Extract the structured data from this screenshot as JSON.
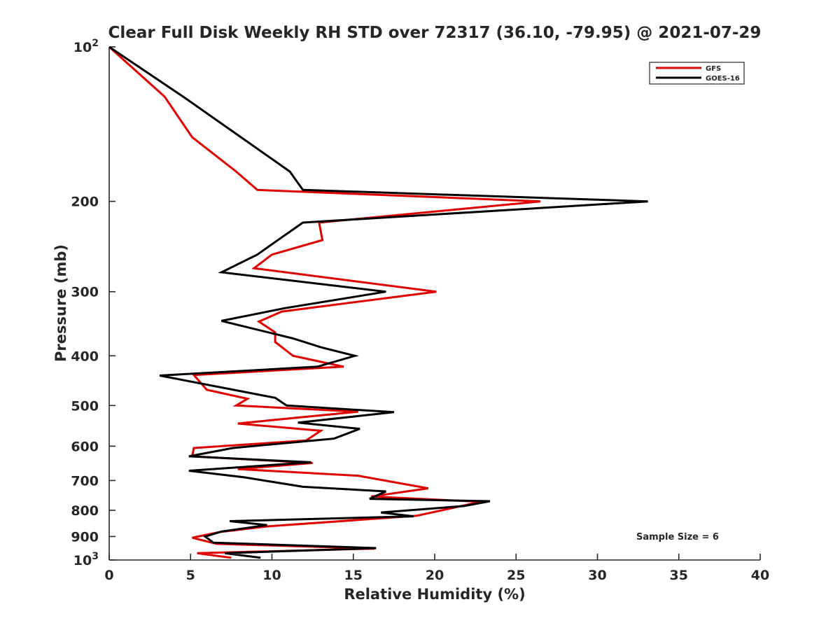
{
  "chart_data": {
    "type": "line",
    "title": "Clear Full Disk Weekly RH STD over 72317 (36.10, -79.95) @ 2021-07-29",
    "xlabel": "Relative Humidity (%)",
    "ylabel": "Pressure (mb)",
    "xlim": [
      0,
      40
    ],
    "ylim": [
      100,
      1000
    ],
    "yscale": "log",
    "y_reversed": true,
    "grid": false,
    "legend_position": "top-right",
    "x_ticks": [
      "0",
      "5",
      "10",
      "15",
      "20",
      "25",
      "30",
      "35",
      "40"
    ],
    "y_ticks": [
      {
        "value": 100,
        "base": "10",
        "exp": "2"
      },
      {
        "value": 200,
        "label": "200"
      },
      {
        "value": 300,
        "label": "300"
      },
      {
        "value": 400,
        "label": "400"
      },
      {
        "value": 500,
        "label": "500"
      },
      {
        "value": 600,
        "label": "600"
      },
      {
        "value": 700,
        "label": "700"
      },
      {
        "value": 800,
        "label": "800"
      },
      {
        "value": 900,
        "label": "900"
      },
      {
        "value": 1000,
        "base": "10",
        "exp": "3"
      }
    ],
    "annotation": "Sample Size = 6",
    "series": [
      {
        "name": "GFS",
        "color": "#e00000",
        "points": [
          [
            0.0,
            100
          ],
          [
            3.4,
            125
          ],
          [
            5.1,
            150
          ],
          [
            7.8,
            175
          ],
          [
            9.1,
            190
          ],
          [
            26.5,
            200
          ],
          [
            12.9,
            220
          ],
          [
            13.1,
            238
          ],
          [
            10.0,
            254
          ],
          [
            8.9,
            270
          ],
          [
            20.1,
            300
          ],
          [
            10.6,
            328
          ],
          [
            9.2,
            343
          ],
          [
            10.2,
            360
          ],
          [
            10.2,
            376
          ],
          [
            11.3,
            400
          ],
          [
            14.4,
            420
          ],
          [
            5.2,
            436
          ],
          [
            6.0,
            466
          ],
          [
            8.5,
            485
          ],
          [
            7.8,
            500
          ],
          [
            15.3,
            514
          ],
          [
            7.9,
            542
          ],
          [
            13.0,
            560
          ],
          [
            12.1,
            585
          ],
          [
            5.2,
            605
          ],
          [
            5.1,
            628
          ],
          [
            12.5,
            647
          ],
          [
            7.9,
            665
          ],
          [
            15.3,
            685
          ],
          [
            19.6,
            725
          ],
          [
            16.1,
            752
          ],
          [
            22.8,
            770
          ],
          [
            21.8,
            783
          ],
          [
            18.9,
            820
          ],
          [
            9.7,
            860
          ],
          [
            6.8,
            882
          ],
          [
            5.1,
            905
          ],
          [
            6.6,
            930
          ],
          [
            16.3,
            950
          ],
          [
            5.4,
            970
          ],
          [
            7.5,
            990
          ]
        ]
      },
      {
        "name": "GOES-16",
        "color": "#000000",
        "points": [
          [
            0.0,
            100
          ],
          [
            4.7,
            126
          ],
          [
            11.1,
            175
          ],
          [
            11.9,
            190
          ],
          [
            33.1,
            200
          ],
          [
            11.9,
            220
          ],
          [
            10.2,
            240
          ],
          [
            9.1,
            254
          ],
          [
            6.9,
            275
          ],
          [
            17.0,
            300
          ],
          [
            10.8,
            323
          ],
          [
            6.9,
            342
          ],
          [
            11.3,
            370
          ],
          [
            13.0,
            385
          ],
          [
            15.1,
            400
          ],
          [
            12.8,
            420
          ],
          [
            3.1,
            437
          ],
          [
            10.2,
            483
          ],
          [
            10.9,
            500
          ],
          [
            17.5,
            515
          ],
          [
            11.6,
            540
          ],
          [
            15.4,
            555
          ],
          [
            13.8,
            580
          ],
          [
            7.6,
            605
          ],
          [
            4.9,
            628
          ],
          [
            12.4,
            645
          ],
          [
            4.9,
            670
          ],
          [
            8.3,
            690
          ],
          [
            11.9,
            720
          ],
          [
            17.0,
            735
          ],
          [
            16.0,
            760
          ],
          [
            23.4,
            768
          ],
          [
            21.8,
            785
          ],
          [
            16.7,
            808
          ],
          [
            18.7,
            822
          ],
          [
            7.4,
            840
          ],
          [
            9.7,
            855
          ],
          [
            6.9,
            880
          ],
          [
            5.9,
            900
          ],
          [
            6.4,
            925
          ],
          [
            16.4,
            948
          ],
          [
            7.1,
            970
          ],
          [
            9.3,
            990
          ]
        ]
      }
    ]
  }
}
